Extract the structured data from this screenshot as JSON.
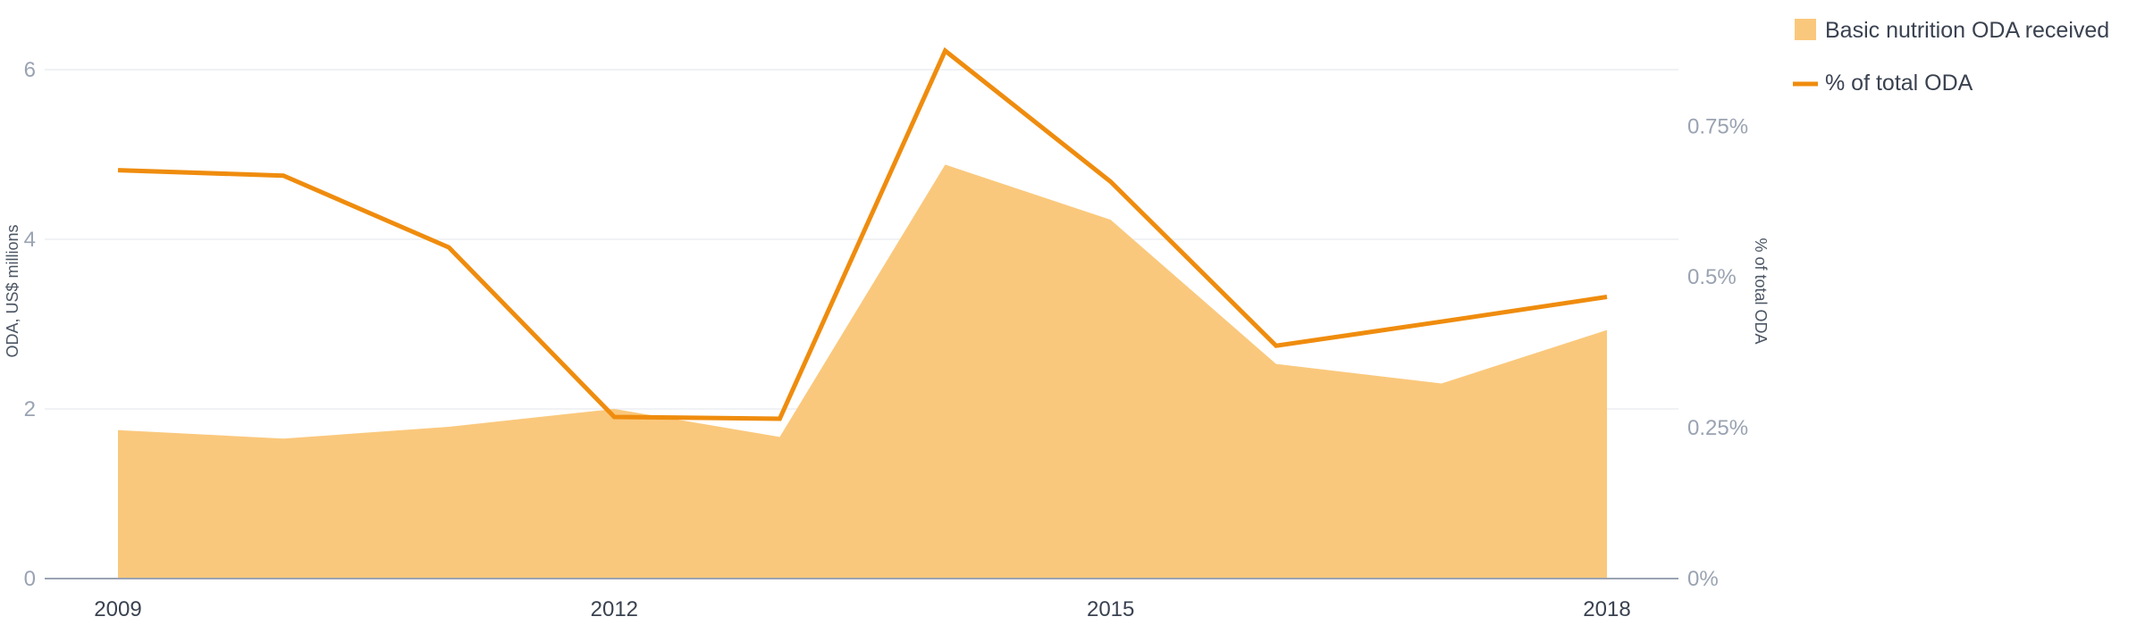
{
  "chart_data": {
    "type": "area",
    "x": [
      2009,
      2010,
      2011,
      2012,
      2013,
      2014,
      2015,
      2016,
      2017,
      2018
    ],
    "series": [
      {
        "name": "Basic nutrition ODA received",
        "kind": "area",
        "axis": "left",
        "color": "#fac87c",
        "values": [
          1.75,
          1.65,
          1.79,
          2.0,
          1.67,
          4.88,
          4.23,
          2.53,
          2.3,
          2.93
        ]
      },
      {
        "name": "% of total ODA",
        "kind": "line",
        "axis": "right",
        "color": "#ef8c0e",
        "values": [
          0.677,
          0.668,
          0.549,
          0.268,
          0.265,
          0.875,
          0.658,
          0.386,
          0.426,
          0.467
        ]
      }
    ],
    "xticks": [
      "2009",
      "2012",
      "2015",
      "2018"
    ],
    "xtick_values": [
      2009,
      2012,
      2015,
      2018
    ],
    "y_left": {
      "label": "ODA, US$ millions",
      "ticks": [
        "0",
        "2",
        "4",
        "6"
      ],
      "tick_values": [
        0,
        2,
        4,
        6
      ],
      "ylim": [
        0,
        6.4
      ]
    },
    "y_right": {
      "label": "% of total ODA",
      "ticks": [
        "0%",
        "0.25%",
        "0.5%",
        "0.75%"
      ],
      "tick_values": [
        0,
        0.25,
        0.5,
        0.75
      ],
      "ylim": [
        0,
        0.9
      ]
    },
    "grid": true,
    "legend_position": "top-right"
  },
  "colors": {
    "area": "#fac87c",
    "line": "#ef8c0e",
    "grid": "#eceef2",
    "axis": "#9aa3b2"
  }
}
